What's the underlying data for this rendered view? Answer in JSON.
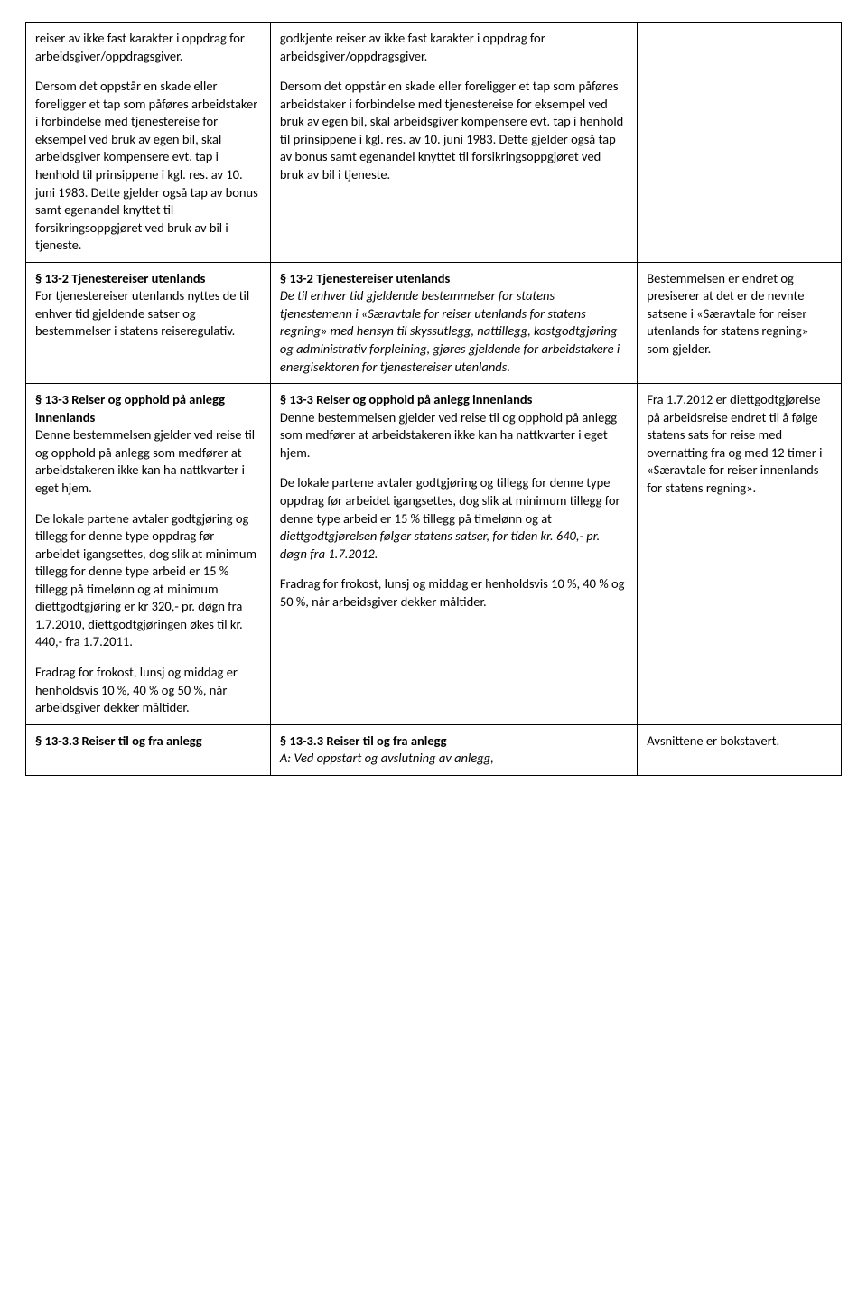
{
  "row1": {
    "col1": {
      "p1": "reiser av ikke fast karakter i oppdrag for arbeidsgiver/oppdragsgiver.",
      "p2": "Dersom det oppstår en skade eller foreligger et tap som påføres arbeidstaker i forbindelse med tjenestereise for eksempel ved bruk av egen bil, skal arbeidsgiver kompensere evt. tap i henhold til prinsippene i kgl. res. av 10. juni 1983. Dette gjelder også tap av bonus samt egenandel knyttet til forsikringsoppgjøret ved bruk av bil i tjeneste."
    },
    "col2": {
      "p1": "godkjente reiser av ikke fast karakter i oppdrag for arbeidsgiver/oppdragsgiver.",
      "p2": "Dersom det oppstår en skade eller foreligger et tap som påføres arbeidstaker i forbindelse med tjenestereise for eksempel ved bruk av egen bil, skal arbeidsgiver kompensere evt. tap i henhold til prinsippene i kgl. res. av 10. juni 1983. Dette gjelder også tap av bonus samt egenandel knyttet til forsikringsoppgjøret ved bruk av bil i tjeneste."
    }
  },
  "row2": {
    "col1": {
      "title": "§ 13-2 Tjenestereiser utenlands",
      "body": "For tjenestereiser utenlands nyttes de til enhver tid gjeldende satser og bestemmelser i statens reiseregulativ."
    },
    "col2": {
      "title": "§ 13-2 Tjenestereiser utenlands",
      "body": "De til enhver tid gjeldende bestemmelser for statens tjenestemenn i «Særavtale for reiser utenlands for statens regning» med hensyn til skyssutlegg, nattillegg, kostgodtgjøring og administrativ forpleining, gjøres gjeldende for arbeidstakere i energisektoren for tjenestereiser utenlands."
    },
    "col3": "Bestemmelsen er endret og presiserer at det er de nevnte satsene i «Særavtale for reiser utenlands for statens regning» som gjelder."
  },
  "row3": {
    "col1": {
      "title": "§ 13-3 Reiser og opphold på anlegg innenlands",
      "p1": "Denne bestemmelsen gjelder ved reise til og opphold på anlegg som medfører at arbeidstakeren ikke kan ha nattkvarter i eget hjem.",
      "p2": "De lokale partene avtaler godtgjøring og tillegg for denne type oppdrag før arbeidet igangsettes, dog slik at minimum tillegg for denne type arbeid er 15 % tillegg på timelønn og at minimum diettgodtgjøring er kr 320,- pr. døgn fra 1.7.2010, diettgodtgjøringen økes til kr. 440,- fra 1.7.2011.",
      "p3": "Fradrag for frokost, lunsj og middag er henholdsvis 10 %, 40 % og 50 %, når arbeidsgiver dekker måltider."
    },
    "col2": {
      "title": "§ 13-3 Reiser og opphold på anlegg innenlands",
      "p1": "Denne bestemmelsen gjelder ved reise til og opphold på anlegg som medfører at arbeidstakeren ikke kan ha nattkvarter i eget hjem.",
      "p2a": "De lokale partene avtaler godtgjøring og tillegg for denne type oppdrag før arbeidet igangsettes, dog slik at minimum tillegg for denne type arbeid er 15 % tillegg på timelønn og at ",
      "p2b": "diettgodtgjørelsen følger statens satser, for tiden kr. 640,- pr. døgn fra 1.7.2012.",
      "p3": "Fradrag for frokost, lunsj og middag er henholdsvis 10 %, 40 % og 50 %, når arbeidsgiver dekker måltider."
    },
    "col3": "Fra 1.7.2012 er diettgodtgjørelse på arbeidsreise endret til å følge statens sats for reise med overnatting fra og med 12 timer i «Særavtale for reiser innenlands for statens regning»."
  },
  "row4": {
    "col1": {
      "title": "§ 13-3.3 Reiser til og fra anlegg"
    },
    "col2": {
      "title": "§ 13-3.3 Reiser til og fra anlegg",
      "body": "A: Ved oppstart og avslutning av anlegg,"
    },
    "col3": "Avsnittene er bokstavert."
  }
}
